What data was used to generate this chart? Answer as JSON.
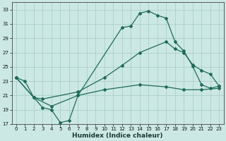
{
  "xlabel": "Humidex (Indice chaleur)",
  "xlim": [
    -0.5,
    23.5
  ],
  "ylim": [
    17,
    34
  ],
  "yticks": [
    17,
    19,
    21,
    23,
    25,
    27,
    29,
    31,
    33
  ],
  "xticks": [
    0,
    1,
    2,
    3,
    4,
    5,
    6,
    7,
    8,
    9,
    10,
    11,
    12,
    13,
    14,
    15,
    16,
    17,
    18,
    19,
    20,
    21,
    22,
    23
  ],
  "bg_color": "#cce8e4",
  "grid_color": "#aacfcb",
  "line_color": "#1e6b5a",
  "curve1_x": [
    0,
    1,
    2,
    3,
    4,
    5,
    6,
    7,
    12,
    13,
    14,
    15,
    16,
    17,
    18,
    19,
    20,
    21,
    22,
    23
  ],
  "curve1_y": [
    23.5,
    23.0,
    20.7,
    19.3,
    19.0,
    17.2,
    17.5,
    21.0,
    30.5,
    30.7,
    32.5,
    32.8,
    32.2,
    31.8,
    28.5,
    27.2,
    25.1,
    22.5,
    22.0,
    22.3
  ],
  "curve2_x": [
    0,
    2,
    3,
    7,
    10,
    12,
    14,
    17,
    18,
    19,
    20,
    21,
    22,
    23
  ],
  "curve2_y": [
    23.5,
    20.7,
    20.5,
    21.5,
    23.5,
    25.2,
    27.0,
    28.5,
    27.5,
    27.0,
    25.3,
    24.5,
    24.0,
    22.3
  ],
  "curve3_x": [
    0,
    2,
    4,
    7,
    10,
    14,
    17,
    19,
    21,
    23
  ],
  "curve3_y": [
    23.5,
    20.7,
    19.5,
    21.0,
    21.8,
    22.5,
    22.2,
    21.8,
    21.8,
    22.0
  ]
}
